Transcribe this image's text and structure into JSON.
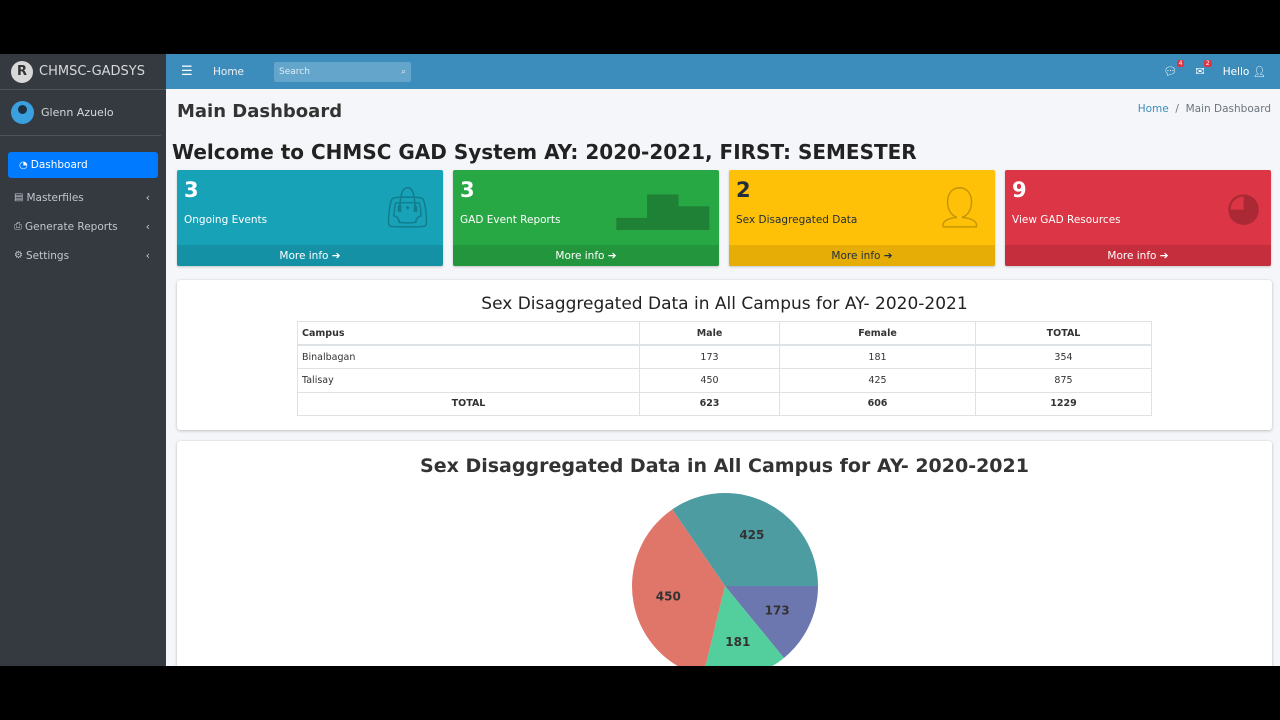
{
  "brand": {
    "name": "CHMSC-GADSYS",
    "logo_letter": "R"
  },
  "user": {
    "name": "Glenn Azuelo"
  },
  "sidebar": {
    "items": [
      {
        "label": "Dashboard",
        "icon": "tachometer-icon",
        "active": true
      },
      {
        "label": "Masterfiles",
        "icon": "file-icon"
      },
      {
        "label": "Generate Reports",
        "icon": "print-icon"
      },
      {
        "label": "Settings",
        "icon": "gear-icon"
      }
    ]
  },
  "topbar": {
    "home": "Home",
    "search_placeholder": "Search",
    "messages_count": "4",
    "mail_count": "2",
    "greeting": "Hello"
  },
  "page": {
    "title": "Main Dashboard",
    "breadcrumb": [
      "Home",
      "Main Dashboard"
    ],
    "welcome": "Welcome to CHMSC GAD System AY: 2020-2021, FIRST: SEMESTER"
  },
  "boxes": [
    {
      "value": "3",
      "label": "Ongoing Events",
      "more": "More info",
      "color": "#17a2b8",
      "icon": "shopping-bag-icon"
    },
    {
      "value": "3",
      "label": "GAD Event Reports",
      "more": "More info",
      "color": "#28a745",
      "icon": "bar-chart-icon"
    },
    {
      "value": "2",
      "label": "Sex Disagregated Data",
      "more": "More info",
      "color": "#ffc107",
      "icon": "user-plus-icon"
    },
    {
      "value": "9",
      "label": "View GAD Resources",
      "more": "More info",
      "color": "#dc3545",
      "icon": "pie-chart-icon"
    }
  ],
  "table": {
    "title": "Sex Disaggregated Data in All Campus for AY- 2020-2021",
    "headers": [
      "Campus",
      "Male",
      "Female",
      "TOTAL"
    ],
    "rows": [
      [
        "Binalbagan",
        "173",
        "181",
        "354"
      ],
      [
        "Talisay",
        "450",
        "425",
        "875"
      ]
    ],
    "total": [
      "TOTAL",
      "623",
      "606",
      "1229"
    ]
  },
  "chart_data": {
    "type": "pie",
    "title": "Sex Disaggregated Data in All Campus for AY- 2020-2021",
    "slices": [
      {
        "value": 173,
        "color": "#6c77b0"
      },
      {
        "value": 181,
        "color": "#52cf9c"
      },
      {
        "value": 450,
        "color": "#e0766a"
      },
      {
        "value": 425,
        "color": "#4d9ca1"
      }
    ]
  }
}
